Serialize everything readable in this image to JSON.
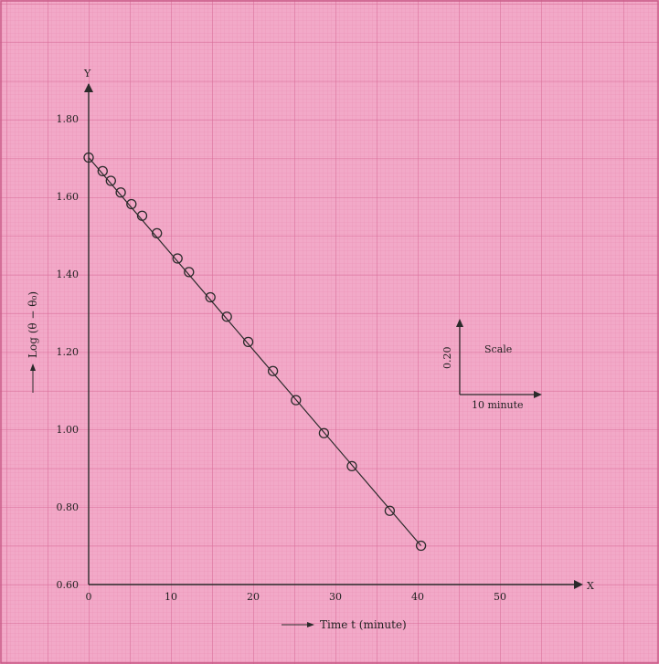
{
  "chart_data": {
    "type": "scatter",
    "xlabel": "Time t (minute)",
    "ylabel": "Log (θ − θ₀)",
    "axis_x_letter": "X",
    "axis_y_letter": "Y",
    "xlim": [
      0,
      60
    ],
    "ylim": [
      0.6,
      1.9
    ],
    "x_ticks": [
      0,
      10,
      20,
      30,
      40,
      50
    ],
    "x_tick_labels": [
      "0",
      "10",
      "20",
      "30",
      "40",
      "50"
    ],
    "y_ticks": [
      0.6,
      0.8,
      1.0,
      1.2,
      1.4,
      1.6,
      1.8
    ],
    "y_tick_labels": [
      "0.60",
      "0.80",
      "1.00",
      "1.20",
      "1.40",
      "1.60",
      "1.80"
    ],
    "grid": true,
    "series": [
      {
        "x": [
          0,
          1.7,
          2.7,
          3.9,
          5.2,
          6.5,
          8.3,
          10.8,
          12.2,
          14.8,
          16.8,
          19.4,
          22.4,
          25.2,
          28.6,
          32.0,
          36.6,
          40.4
        ],
        "y": [
          1.7,
          1.665,
          1.64,
          1.61,
          1.58,
          1.55,
          1.505,
          1.44,
          1.405,
          1.34,
          1.29,
          1.225,
          1.15,
          1.075,
          0.99,
          0.905,
          0.79,
          0.7
        ],
        "fit_line": {
          "x": [
            0,
            40.4
          ],
          "y": [
            1.7,
            0.7
          ]
        }
      }
    ],
    "scale_legend": {
      "title": "Scale",
      "vertical_label": "0.20",
      "horizontal_label": "10 minute"
    }
  },
  "colors": {
    "paper": "#f2a9c8",
    "grid_fine": "#ea8fb4",
    "grid_major": "#d86b97",
    "ink": "#2a2a2a"
  }
}
